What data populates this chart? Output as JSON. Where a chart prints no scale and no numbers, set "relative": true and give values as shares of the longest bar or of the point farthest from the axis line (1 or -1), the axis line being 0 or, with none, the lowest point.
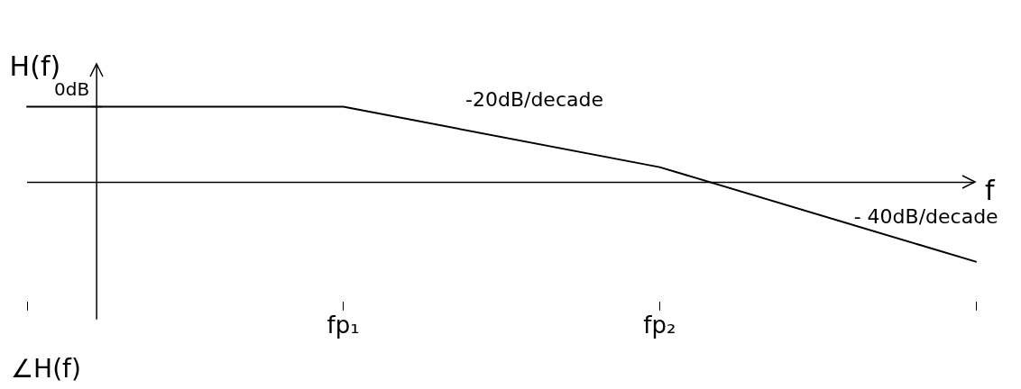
{
  "chart_data": {
    "type": "line",
    "relative": true,
    "xlabel": "f",
    "ylabel": "H(f)",
    "categories": [
      null,
      "fp₁",
      "fp₂",
      null
    ],
    "series": [
      {
        "color": "#000000",
        "values": [
          0.95,
          0.95,
          0.19,
          -1
        ]
      }
    ],
    "marker": "none",
    "line_style": "solid",
    "legend": false,
    "grid": false,
    "annotations": [
      "0dB",
      "-20dB/decade",
      "- 40dB/decade",
      "∠H(f)"
    ]
  }
}
